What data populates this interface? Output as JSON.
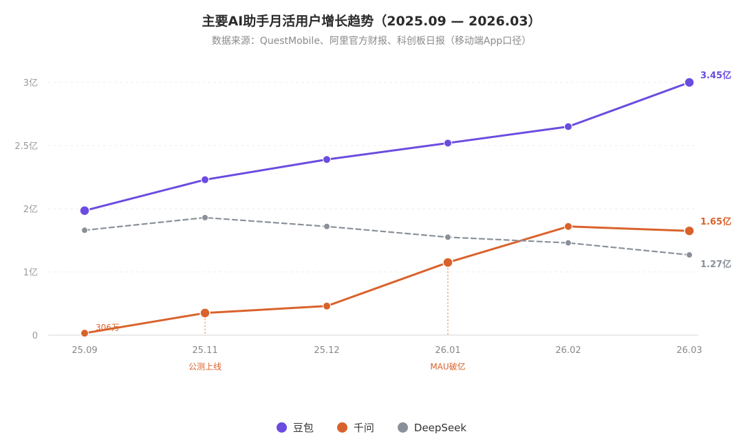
{
  "header": {
    "title": "主要AI助手月活用户增长趋势（2025.09 — 2026.03）",
    "subtitle": "数据来源：QuestMobile、阿里官方财报、科创板日报（移动端App口径）"
  },
  "chart_data": {
    "type": "line",
    "categories": [
      "25.09",
      "25.11",
      "25.12",
      "26.01",
      "26.02",
      "26.03"
    ],
    "y_ticks": [
      {
        "value": 0,
        "label": "0"
      },
      {
        "value": 1,
        "label": "1亿"
      },
      {
        "value": 2,
        "label": "2亿"
      },
      {
        "value": 2.5,
        "label": "2.5亿"
      },
      {
        "value": 3,
        "label": "3亿"
      }
    ],
    "grid": true,
    "legend_position": "bottom-center",
    "series": [
      {
        "name": "豆包",
        "color": "#6b4be0",
        "dashed": false,
        "values": [
          1.97,
          2.23,
          2.39,
          2.52,
          2.65,
          3.45
        ],
        "end_label": "3.45亿",
        "large_markers": [
          0,
          5
        ]
      },
      {
        "name": "千问",
        "color": "#d9622b",
        "dashed": false,
        "values": [
          0.0306,
          0.35,
          0.46,
          1.15,
          1.72,
          1.65
        ],
        "end_label": "1.65亿",
        "large_markers": [
          1,
          3,
          5
        ]
      },
      {
        "name": "DeepSeek",
        "color": "#8a9099",
        "dashed": true,
        "values": [
          1.66,
          1.86,
          1.72,
          1.55,
          1.46,
          1.27
        ],
        "end_label": "1.27亿",
        "large_markers": []
      }
    ],
    "annotations": [
      {
        "series": 1,
        "index": 0,
        "text": "306万"
      },
      {
        "series": 1,
        "index": 1,
        "text": "公测上线",
        "color": "#d9622b"
      },
      {
        "series": 1,
        "index": 3,
        "text": "MAU破亿",
        "color": "#d9622b"
      }
    ]
  }
}
